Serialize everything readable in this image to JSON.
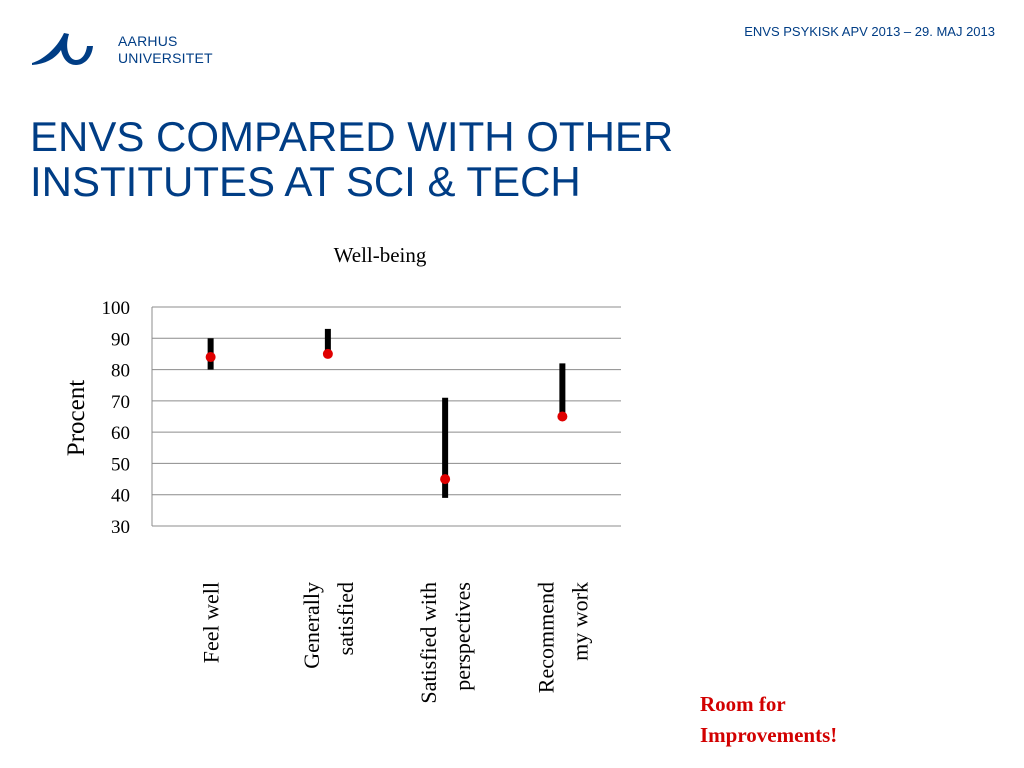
{
  "header": {
    "logo_line1": "AARHUS",
    "logo_line2": "UNIVERSITET",
    "subtitle": "ENVS PSYKISK APV 2013 – 29. MAJ 2013"
  },
  "slide": {
    "title_line1": "ENVS COMPARED WITH OTHER",
    "title_line2": "INSTITUTES AT SCI & TECH"
  },
  "colors": {
    "brand": "#003d85",
    "marker": "#e00000",
    "range": "#000000",
    "highlight": "#d20000"
  },
  "chart_data": {
    "type": "scatter",
    "title": "Well-being",
    "ylabel": "Procent",
    "ylim": [
      30,
      100
    ],
    "yticks": [
      100,
      90,
      80,
      70,
      60,
      50,
      40,
      30
    ],
    "grid": true,
    "categories": [
      [
        "Feel well"
      ],
      [
        "Generally",
        "satisfied"
      ],
      [
        "Satisfied with",
        "perspectives"
      ],
      [
        "Recommend",
        "my work"
      ]
    ],
    "range_low": [
      80,
      85,
      39,
      65
    ],
    "range_high": [
      90,
      93,
      71,
      82
    ],
    "values": [
      84,
      85,
      45,
      65
    ]
  },
  "note": {
    "line1": "Room for",
    "line2": "Improvements!"
  }
}
